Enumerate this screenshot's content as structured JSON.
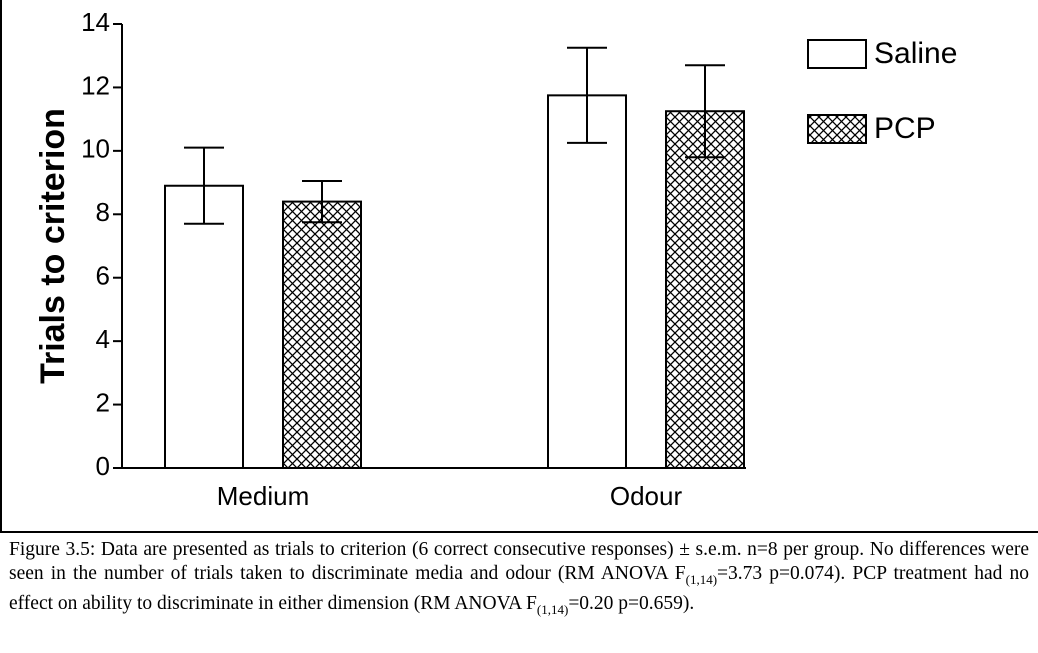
{
  "chart_data": {
    "type": "bar",
    "ylabel": "Trials to criterion",
    "categories": [
      "Medium",
      "Odour"
    ],
    "series": [
      {
        "name": "Saline",
        "color": "#ffffff",
        "values": [
          8.9,
          11.75
        ],
        "errors": [
          1.2,
          1.5
        ]
      },
      {
        "name": "PCP",
        "color": "#000000",
        "pattern": "crosshatch",
        "values": [
          8.4,
          11.25
        ],
        "errors": [
          0.65,
          1.45
        ]
      }
    ],
    "ylim": [
      0,
      14
    ],
    "yticks": [
      0,
      2,
      4,
      6,
      8,
      10,
      12,
      14
    ],
    "grid": false,
    "legend": "upper right"
  },
  "caption": [
    "Figure 3.5: Data are presented as trials to criterion (6 correct consecutive responses) ± s.e.m. n=8 per group. No differences were seen in the number of trials taken to discriminate media and odour (RM ANOVA F",
    "(1,14)",
    "=3.73 p=0.074). PCP treatment had no effect on ability to discriminate in either dimension  (RM ANOVA F",
    "(1,14)",
    "=0.20 p=0.659)."
  ]
}
